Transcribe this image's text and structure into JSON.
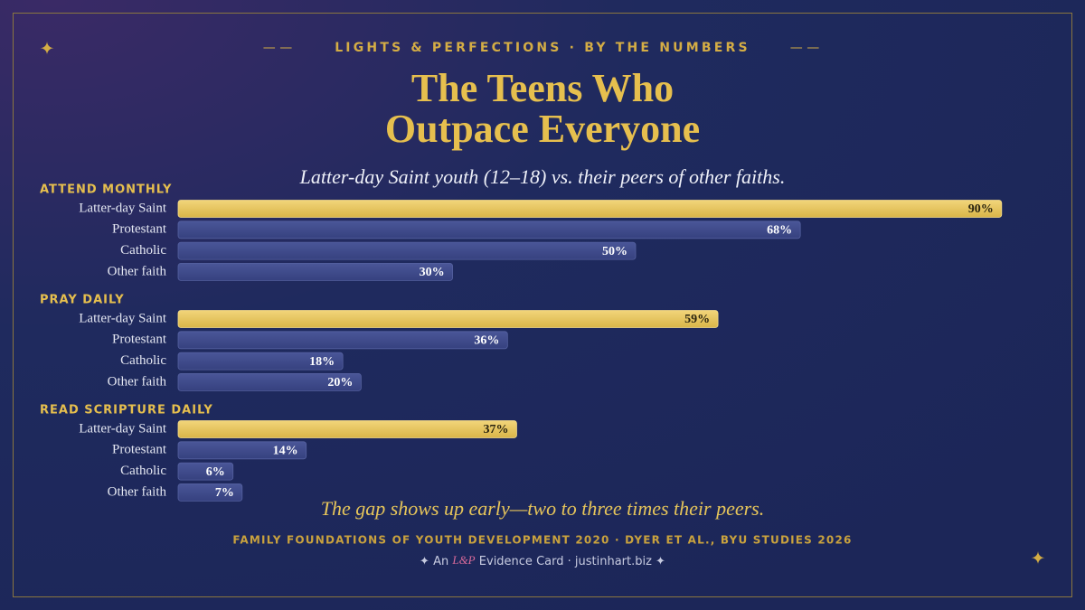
{
  "chart_data": {
    "type": "bar",
    "kicker": "LIGHTS & PERFECTIONS · BY THE NUMBERS",
    "title": [
      "The Teens Who",
      "Outpace Everyone"
    ],
    "subtitle": "Latter-day Saint youth (12–18) vs. their peers of other faiths.",
    "xlim": [
      0,
      100
    ],
    "groups": [
      {
        "name": "ATTEND MONTHLY",
        "categories": [
          "Latter-day Saint",
          "Protestant",
          "Catholic",
          "Other faith"
        ],
        "values": [
          90,
          68,
          50,
          30
        ],
        "value_labels": [
          "90%",
          "68%",
          "50%",
          "30%"
        ],
        "colors": [
          "#e6c55a",
          "#3e4a8c",
          "#3e4a8c",
          "#3e4a8c"
        ]
      },
      {
        "name": "PRAY DAILY",
        "categories": [
          "Latter-day Saint",
          "Protestant",
          "Catholic",
          "Other faith"
        ],
        "values": [
          59,
          36,
          18,
          20
        ],
        "value_labels": [
          "59%",
          "36%",
          "18%",
          "20%"
        ],
        "colors": [
          "#e6c55a",
          "#3e4a8c",
          "#3e4a8c",
          "#3e4a8c"
        ]
      },
      {
        "name": "READ SCRIPTURE DAILY",
        "categories": [
          "Latter-day Saint",
          "Protestant",
          "Catholic",
          "Other faith"
        ],
        "values": [
          37,
          14,
          6,
          7
        ],
        "value_labels": [
          "37%",
          "14%",
          "6%",
          "7%"
        ],
        "colors": [
          "#e6c55a",
          "#3e4a8c",
          "#3e4a8c",
          "#3e4a8c"
        ]
      }
    ],
    "note": "The gap shows up early—two to three times their peers.",
    "source": "FAMILY FOUNDATIONS OF YOUTH DEVELOPMENT 2020 · DYER ET AL., BYU STUDIES 2026",
    "credit": [
      "An",
      "L&P",
      "Evidence Card · justinhart.biz"
    ]
  }
}
